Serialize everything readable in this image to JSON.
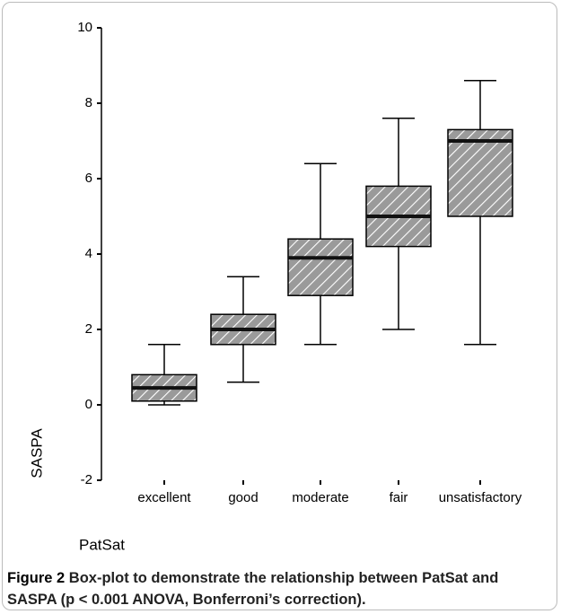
{
  "chart_data": {
    "type": "box",
    "xlabel": "PatSat",
    "ylabel": "SASPA",
    "categories": [
      "excellent",
      "good",
      "moderate",
      "fair",
      "unsatisfactory"
    ],
    "min": [
      0,
      0.6,
      1.6,
      2.0,
      1.6
    ],
    "q1": [
      0.1,
      1.6,
      2.9,
      4.2,
      5.0
    ],
    "median": [
      0.45,
      2.0,
      3.9,
      5.0,
      7.0
    ],
    "q3": [
      0.8,
      2.4,
      4.4,
      5.8,
      7.3
    ],
    "max": [
      1.6,
      3.4,
      6.4,
      7.6,
      8.6
    ],
    "color": "#9a9a9a",
    "ylim": [
      -2,
      10
    ],
    "yticks": [
      -2,
      0,
      2,
      4,
      6,
      8,
      10
    ]
  },
  "caption": {
    "label": "Figure 2",
    "text": "Box-plot to demonstrate the relationship between PatSat and SASPA (p < 0.001 ANOVA, Bonferroni’s correction)."
  }
}
